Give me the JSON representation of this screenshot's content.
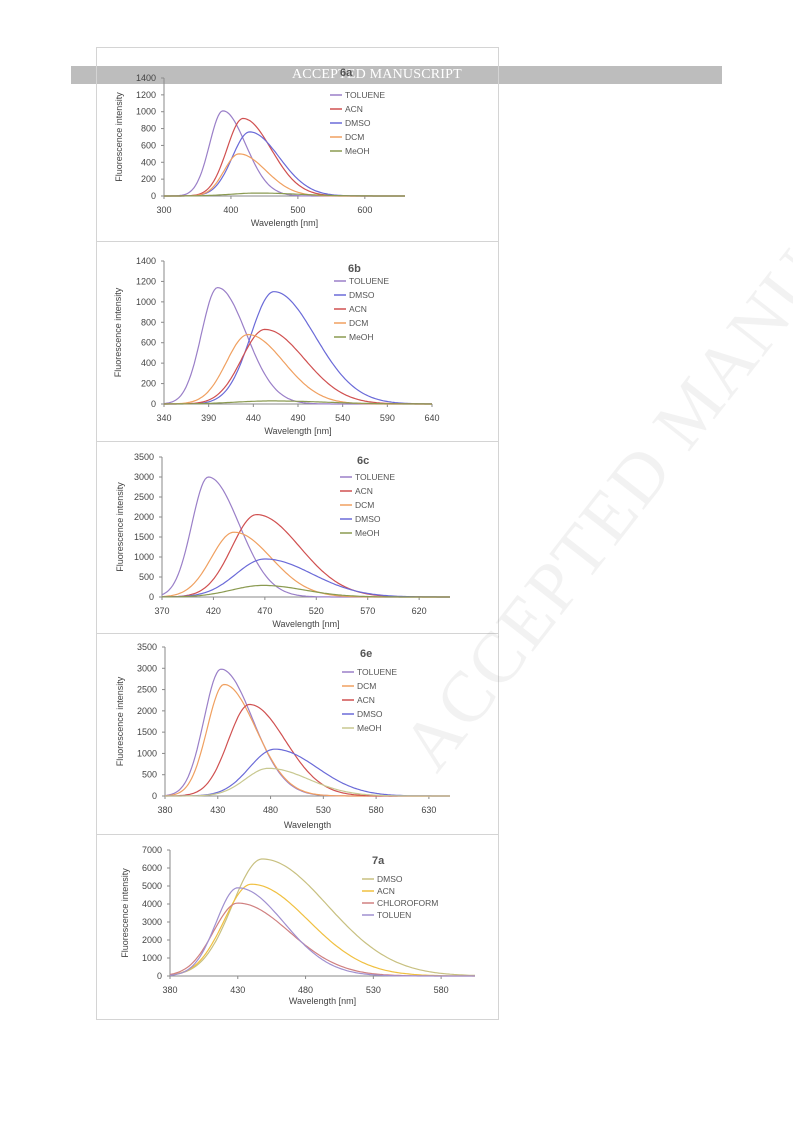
{
  "header": {
    "text": "ACCEPTED MANUSCRIPT"
  },
  "watermark": {
    "text": "ACCEPTED MANUSCRIPT"
  },
  "chart_data": [
    {
      "type": "line",
      "title": "6a",
      "xlabel": "Wavelength [nm]",
      "ylabel": "Fluorescence intensity",
      "xlim": [
        300,
        660
      ],
      "ylim": [
        0,
        1400
      ],
      "xticks": [
        300,
        400,
        500,
        600
      ],
      "yticks": [
        0,
        200,
        400,
        600,
        800,
        1000,
        1200,
        1400
      ],
      "legend_position": "top-right",
      "grid": false,
      "series": [
        {
          "name": "TOLUENE",
          "color": "#9a7fc8",
          "peak": 388,
          "height": 1010,
          "wl": 20,
          "wr": 34
        },
        {
          "name": "ACN",
          "color": "#d05050",
          "peak": 418,
          "height": 920,
          "wl": 24,
          "wr": 42
        },
        {
          "name": "DMSO",
          "color": "#6a6ad8",
          "peak": 428,
          "height": 760,
          "wl": 26,
          "wr": 44
        },
        {
          "name": "DCM",
          "color": "#f0a060",
          "peak": 412,
          "height": 500,
          "wl": 22,
          "wr": 40
        },
        {
          "name": "MeOH",
          "color": "#8a9a50",
          "peak": 440,
          "height": 35,
          "wl": 40,
          "wr": 60
        }
      ]
    },
    {
      "type": "line",
      "title": "6b",
      "xlabel": "Wavelength [nm]",
      "ylabel": "Fluorescence intensity",
      "xlim": [
        340,
        640
      ],
      "ylim": [
        0,
        1400
      ],
      "xticks": [
        340,
        390,
        440,
        490,
        540,
        590,
        640
      ],
      "yticks": [
        0,
        200,
        400,
        600,
        800,
        1000,
        1200,
        1400
      ],
      "legend_position": "top-right",
      "grid": false,
      "series": [
        {
          "name": "TOLUENE",
          "color": "#9a7fc8",
          "peak": 400,
          "height": 1140,
          "wl": 18,
          "wr": 32
        },
        {
          "name": "DMSO",
          "color": "#6a6ad8",
          "peak": 463,
          "height": 1100,
          "wl": 26,
          "wr": 46
        },
        {
          "name": "ACN",
          "color": "#d05050",
          "peak": 453,
          "height": 730,
          "wl": 26,
          "wr": 44
        },
        {
          "name": "DCM",
          "color": "#f0a060",
          "peak": 434,
          "height": 680,
          "wl": 24,
          "wr": 40
        },
        {
          "name": "MeOH",
          "color": "#8a9a50",
          "peak": 460,
          "height": 30,
          "wl": 40,
          "wr": 60
        }
      ]
    },
    {
      "type": "line",
      "title": "6c",
      "xlabel": "Wavelength [nm]",
      "ylabel": "Fluorescence intensity",
      "xlim": [
        370,
        650
      ],
      "ylim": [
        0,
        3500
      ],
      "xticks": [
        370,
        420,
        470,
        520,
        570,
        620
      ],
      "yticks": [
        0,
        500,
        1000,
        1500,
        2000,
        2500,
        3000,
        3500
      ],
      "legend_position": "top-right",
      "grid": false,
      "series": [
        {
          "name": "TOLUENE",
          "color": "#9a7fc8",
          "peak": 415,
          "height": 3000,
          "wl": 16,
          "wr": 30
        },
        {
          "name": "ACN",
          "color": "#d05050",
          "peak": 462,
          "height": 2060,
          "wl": 24,
          "wr": 42
        },
        {
          "name": "DCM",
          "color": "#f0a060",
          "peak": 440,
          "height": 1620,
          "wl": 22,
          "wr": 36
        },
        {
          "name": "DMSO",
          "color": "#6a6ad8",
          "peak": 470,
          "height": 950,
          "wl": 28,
          "wr": 46
        },
        {
          "name": "MeOH",
          "color": "#8a9a50",
          "peak": 468,
          "height": 290,
          "wl": 30,
          "wr": 40
        }
      ]
    },
    {
      "type": "line",
      "title": "6e",
      "xlabel": "Wavelength",
      "ylabel": "Fluorescence intensity",
      "xlim": [
        380,
        650
      ],
      "ylim": [
        0,
        3500
      ],
      "xticks": [
        380,
        430,
        480,
        530,
        580,
        630
      ],
      "yticks": [
        0,
        500,
        1000,
        1500,
        2000,
        2500,
        3000,
        3500
      ],
      "legend_position": "top-right",
      "grid": false,
      "series": [
        {
          "name": "TOLUENE",
          "color": "#9a7fc8",
          "peak": 433,
          "height": 2980,
          "wl": 16,
          "wr": 30
        },
        {
          "name": "DCM",
          "color": "#f0a060",
          "peak": 436,
          "height": 2620,
          "wl": 16,
          "wr": 30
        },
        {
          "name": "ACN",
          "color": "#d05050",
          "peak": 460,
          "height": 2150,
          "wl": 20,
          "wr": 34
        },
        {
          "name": "DMSO",
          "color": "#6a6ad8",
          "peak": 484,
          "height": 1100,
          "wl": 24,
          "wr": 40
        },
        {
          "name": "MeOH",
          "color": "#c8c890",
          "peak": 478,
          "height": 650,
          "wl": 22,
          "wr": 38
        }
      ]
    },
    {
      "type": "line",
      "title": "7a",
      "xlabel": "Wavelength [nm]",
      "ylabel": "Fluorescence intensity",
      "xlim": [
        380,
        605
      ],
      "ylim": [
        0,
        7000
      ],
      "xticks": [
        380,
        430,
        480,
        530,
        580
      ],
      "yticks": [
        0,
        1000,
        2000,
        3000,
        4000,
        5000,
        6000,
        7000
      ],
      "legend_position": "top-right",
      "grid": false,
      "series": [
        {
          "name": "DMSO",
          "color": "#c8c080",
          "peak": 448,
          "height": 6500,
          "wl": 22,
          "wr": 48
        },
        {
          "name": "ACN",
          "color": "#f0c040",
          "peak": 440,
          "height": 5100,
          "wl": 20,
          "wr": 42
        },
        {
          "name": "CHLOROFORM",
          "color": "#d08080",
          "peak": 430,
          "height": 4050,
          "wl": 18,
          "wr": 38
        },
        {
          "name": "TOLUEN",
          "color": "#a090d0",
          "peak": 430,
          "height": 4900,
          "wl": 16,
          "wr": 34
        }
      ]
    }
  ]
}
